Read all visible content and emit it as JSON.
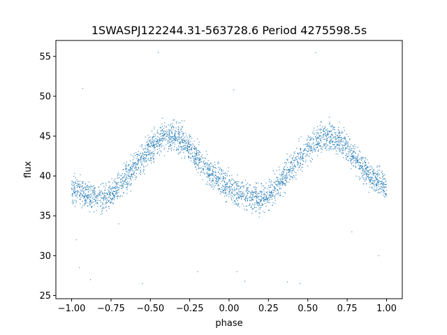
{
  "chart_data": {
    "type": "scatter",
    "title": "1SWASPJ122244.31-563728.6 Period 4275598.5s",
    "xlabel": "phase",
    "ylabel": "flux",
    "xlim": [
      -1.1,
      1.1
    ],
    "ylim": [
      24.6,
      57.0
    ],
    "xticks": [
      -1.0,
      -0.75,
      -0.5,
      -0.25,
      0.0,
      0.25,
      0.5,
      0.75,
      1.0
    ],
    "xtick_labels": [
      "−1.00",
      "−0.75",
      "−0.50",
      "−0.25",
      "0.00",
      "0.25",
      "0.50",
      "0.75",
      "1.00"
    ],
    "yticks": [
      25,
      30,
      35,
      40,
      45,
      50,
      55
    ],
    "ytick_labels": [
      "25",
      "30",
      "35",
      "40",
      "45",
      "50",
      "55"
    ],
    "grid": false,
    "marker_color": "#1f77b4",
    "series": [
      {
        "x": [
          -1.0,
          -0.95,
          -0.9,
          -0.85,
          -0.8,
          -0.75,
          -0.7,
          -0.65,
          -0.6,
          -0.55,
          -0.5,
          -0.45,
          -0.4,
          -0.35,
          -0.3,
          -0.25,
          -0.2,
          -0.15,
          -0.1,
          -0.05,
          0.0,
          0.05,
          0.1,
          0.15,
          0.2,
          0.25,
          0.3,
          0.35,
          0.4,
          0.45,
          0.5,
          0.55,
          0.6,
          0.65,
          0.7,
          0.75,
          0.8,
          0.85,
          0.9,
          0.95,
          1.0
        ],
        "y": [
          38.5,
          38.0,
          37.6,
          37.3,
          37.2,
          37.6,
          38.6,
          39.8,
          41.0,
          42.3,
          43.5,
          44.4,
          44.9,
          45.0,
          44.6,
          43.6,
          42.4,
          41.0,
          40.0,
          39.3,
          38.5,
          38.0,
          37.6,
          37.3,
          37.2,
          37.6,
          38.6,
          39.8,
          41.0,
          42.3,
          43.5,
          44.4,
          44.9,
          45.0,
          44.6,
          43.6,
          42.4,
          41.0,
          40.0,
          39.3,
          38.5
        ]
      }
    ],
    "outliers": [
      {
        "x": -0.93,
        "y": 51.0
      },
      {
        "x": -0.88,
        "y": 27.0
      },
      {
        "x": -0.95,
        "y": 28.5
      },
      {
        "x": -0.97,
        "y": 32.0
      },
      {
        "x": -0.45,
        "y": 55.5
      },
      {
        "x": -0.55,
        "y": 26.5
      },
      {
        "x": -0.2,
        "y": 28.0
      },
      {
        "x": 0.03,
        "y": 50.8
      },
      {
        "x": 0.1,
        "y": 26.8
      },
      {
        "x": 0.05,
        "y": 28.0
      },
      {
        "x": 0.37,
        "y": 26.7
      },
      {
        "x": 0.45,
        "y": 26.5
      },
      {
        "x": 0.55,
        "y": 55.5
      },
      {
        "x": 0.78,
        "y": 33.0
      },
      {
        "x": 0.95,
        "y": 30.0
      },
      {
        "x": -0.7,
        "y": 34.0
      }
    ]
  }
}
